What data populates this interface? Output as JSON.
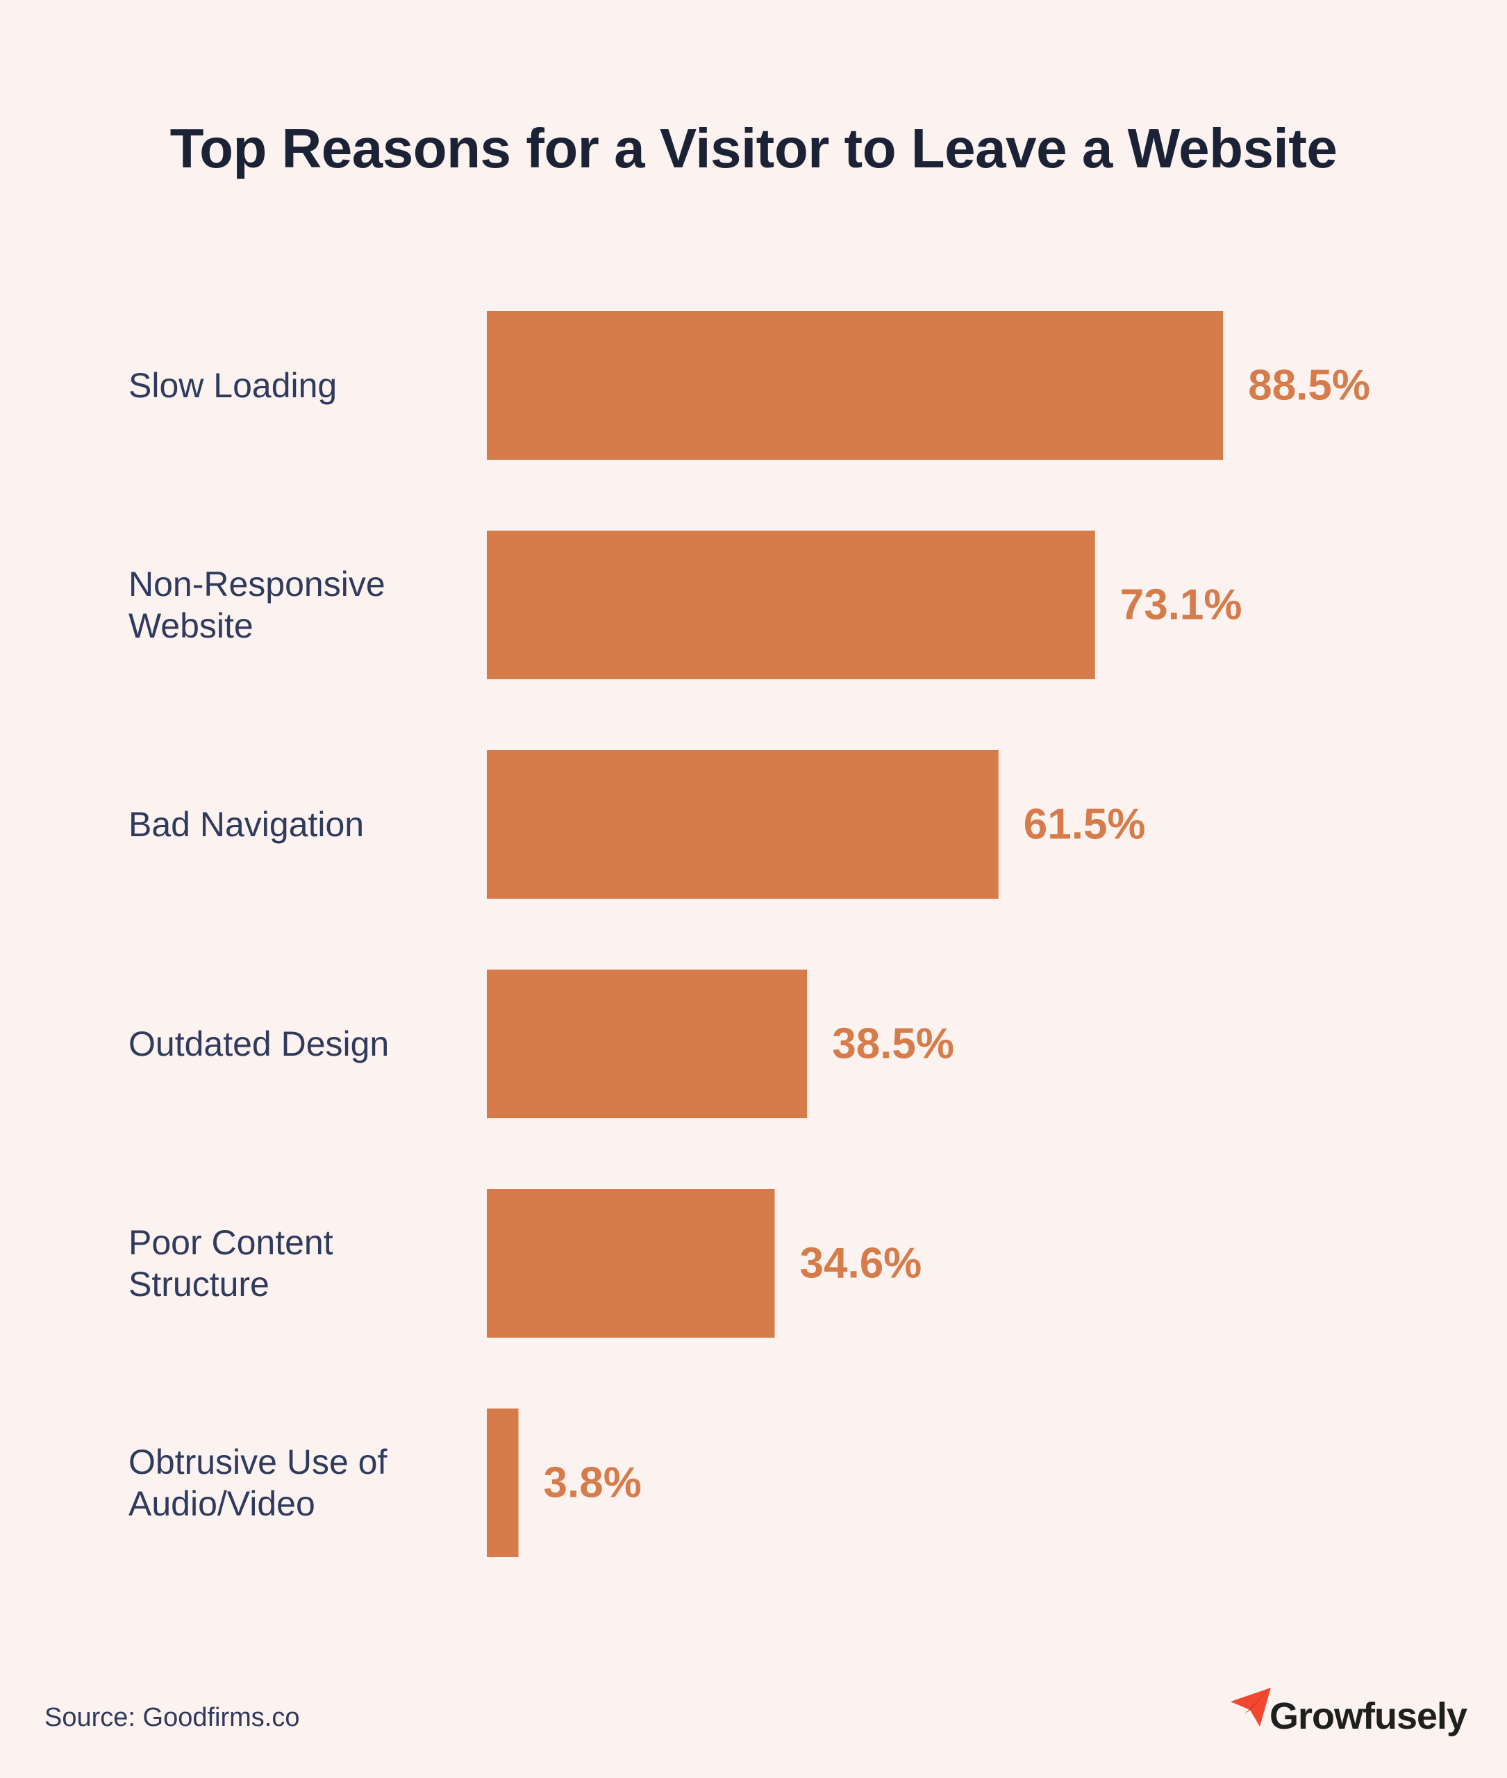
{
  "chart_data": {
    "type": "bar",
    "orientation": "horizontal",
    "title": "Top Reasons for a Visitor to Leave a Website",
    "categories": [
      [
        "Slow Loading"
      ],
      [
        "Non-Responsive",
        "Website"
      ],
      [
        "Bad Navigation"
      ],
      [
        "Outdated Design"
      ],
      [
        "Poor Content",
        "Structure"
      ],
      [
        "Obtrusive Use of",
        "Audio/Video"
      ]
    ],
    "values": [
      88.5,
      73.1,
      61.5,
      38.5,
      34.6,
      3.8
    ],
    "value_labels": [
      "88.5%",
      "73.1%",
      "61.5%",
      "38.5%",
      "34.6%",
      "3.8%"
    ],
    "grid": false,
    "legend": "none",
    "colors": {
      "bar": "#d67c4b",
      "value_label": "#d67c4b",
      "category_label": "#2f3a5c"
    }
  },
  "footer": {
    "source": "Source: Goodfirms.co",
    "brand": "Growfusely"
  },
  "icons": {
    "brand": "paper-plane-icon"
  },
  "colors": {
    "background": "#fcf3f0",
    "title": "#1c2236",
    "brand_icon": "#f0492f"
  }
}
